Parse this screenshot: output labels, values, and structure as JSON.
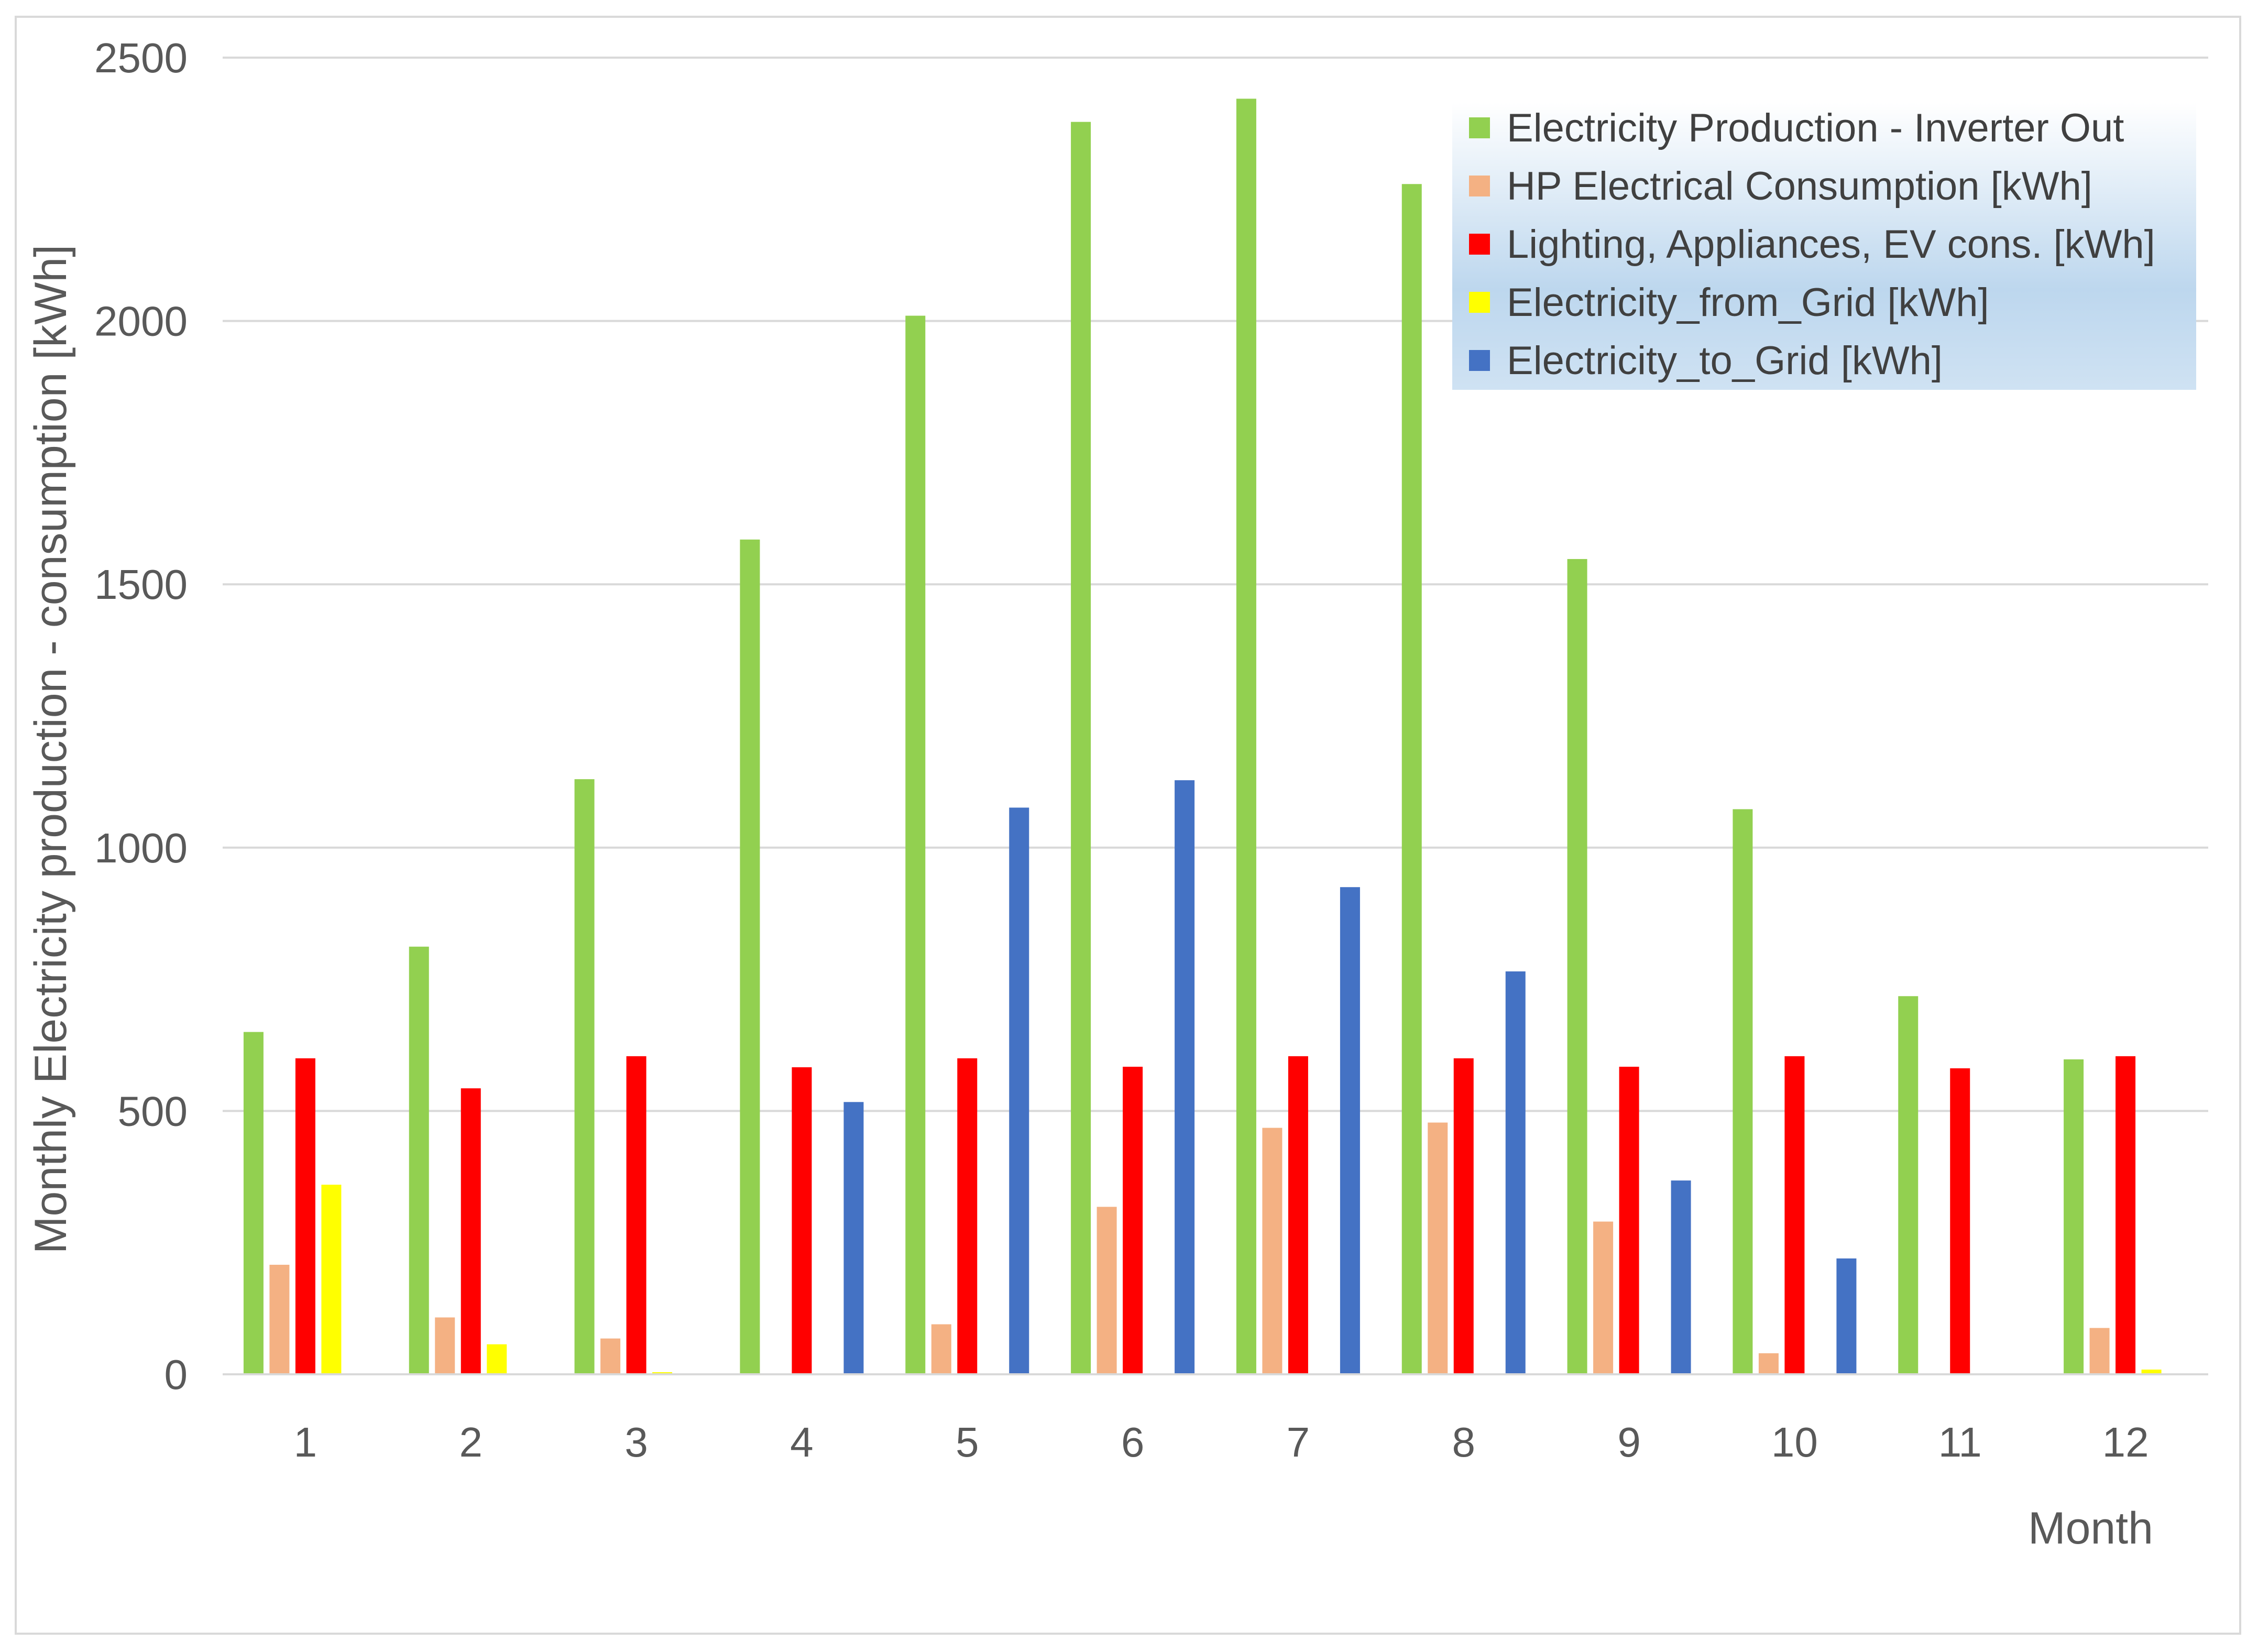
{
  "chart_data": {
    "type": "bar",
    "xlabel": "Month",
    "ylabel": "Monthly Electricity production - consumption [kWh]",
    "ylim": [
      0,
      2500
    ],
    "yticks": [
      0,
      500,
      1000,
      1500,
      2000,
      2500
    ],
    "categories": [
      "1",
      "2",
      "3",
      "4",
      "5",
      "6",
      "7",
      "8",
      "9",
      "10",
      "11",
      "12"
    ],
    "grid": true,
    "legend_position": "top-right",
    "series": [
      {
        "name": "Electricity Production - Inverter Out",
        "color": "#92d050",
        "values": [
          650,
          812,
          1130,
          1585,
          2010,
          2378,
          2422,
          2260,
          1548,
          1073,
          718,
          598
        ]
      },
      {
        "name": "HP Electrical Consumption [kWh]",
        "color": "#f4b183",
        "values": [
          208,
          108,
          68,
          0,
          95,
          318,
          468,
          478,
          290,
          40,
          0,
          88
        ]
      },
      {
        "name": "Lighting, Appliances, EV cons. [kWh]",
        "color": "#ff0000",
        "values": [
          600,
          543,
          604,
          583,
          600,
          584,
          604,
          600,
          584,
          604,
          581,
          604
        ]
      },
      {
        "name": "Electricity_from_Grid [kWh]",
        "color": "#ffff00",
        "values": [
          360,
          57,
          4,
          0,
          0,
          0,
          0,
          0,
          0,
          0,
          0,
          9
        ]
      },
      {
        "name": "Electricity_to_Grid [kWh]",
        "color": "#4472c4",
        "values": [
          0,
          0,
          0,
          517,
          1076,
          1128,
          925,
          765,
          368,
          220,
          0,
          0
        ]
      }
    ]
  }
}
